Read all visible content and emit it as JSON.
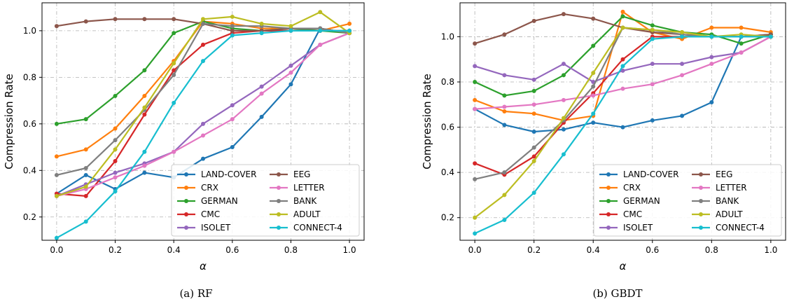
{
  "figure": {
    "captions": [
      "(a) RF",
      "(b) GBDT"
    ]
  },
  "legend_columns": [
    [
      "LAND-COVER",
      "CRX",
      "GERMAN",
      "CMC",
      "ISOLET"
    ],
    [
      "EEG",
      "LETTER",
      "BANK",
      "ADULT",
      "CONNECT-4"
    ]
  ],
  "chart_data": [
    {
      "type": "line",
      "title": "",
      "caption": "(a) RF",
      "xlabel": "α",
      "ylabel": "Compression Rate",
      "xlim": [
        -0.05,
        1.05
      ],
      "ylim": [
        0.1,
        1.12
      ],
      "xticks": [
        0.0,
        0.2,
        0.4,
        0.6,
        0.8,
        1.0
      ],
      "xtick_labels": [
        "0.0",
        "0.2",
        "0.4",
        "0.6",
        "0.8",
        "1.0"
      ],
      "yticks": [
        0.2,
        0.4,
        0.6,
        0.8,
        1.0
      ],
      "ytick_labels": [
        "0.2",
        "0.4",
        "0.6",
        "0.8",
        "1.0"
      ],
      "grid": true,
      "legend_position": "lower-right",
      "x": [
        0.0,
        0.1,
        0.2,
        0.3,
        0.4,
        0.5,
        0.6,
        0.7,
        0.8,
        0.9,
        1.0
      ],
      "series": [
        {
          "name": "LAND-COVER",
          "color": "#1f77b4",
          "values": [
            0.3,
            0.38,
            0.32,
            0.39,
            0.37,
            0.45,
            0.5,
            0.63,
            0.77,
            1.01,
            0.99
          ]
        },
        {
          "name": "CRX",
          "color": "#ff7f0e",
          "values": [
            0.46,
            0.49,
            0.58,
            0.72,
            0.87,
            1.04,
            1.03,
            1.01,
            1.01,
            1.0,
            1.03
          ]
        },
        {
          "name": "GERMAN",
          "color": "#2ca02c",
          "values": [
            0.6,
            0.62,
            0.72,
            0.83,
            0.99,
            1.04,
            1.01,
            1.0,
            1.01,
            1.0,
            0.99
          ]
        },
        {
          "name": "CMC",
          "color": "#d62728",
          "values": [
            0.3,
            0.29,
            0.44,
            0.64,
            0.83,
            0.94,
            0.99,
            1.0,
            1.0,
            1.0,
            1.0
          ]
        },
        {
          "name": "ISOLET",
          "color": "#9467bd",
          "values": [
            0.29,
            0.34,
            0.39,
            0.43,
            0.48,
            0.6,
            0.68,
            0.76,
            0.85,
            0.94,
            0.99
          ]
        },
        {
          "name": "EEG",
          "color": "#8c564b",
          "values": [
            1.02,
            1.04,
            1.05,
            1.05,
            1.05,
            1.03,
            1.0,
            1.0,
            1.01,
            1.01,
            0.99
          ]
        },
        {
          "name": "LETTER",
          "color": "#e377c2",
          "values": [
            0.29,
            0.32,
            0.37,
            0.42,
            0.48,
            0.55,
            0.62,
            0.73,
            0.82,
            0.94,
            0.99
          ]
        },
        {
          "name": "BANK",
          "color": "#7f7f7f",
          "values": [
            0.38,
            0.41,
            0.53,
            0.66,
            0.81,
            1.03,
            1.02,
            1.02,
            1.01,
            1.01,
            0.99
          ]
        },
        {
          "name": "ADULT",
          "color": "#bcbd22",
          "values": [
            0.29,
            0.33,
            0.49,
            0.67,
            0.86,
            1.05,
            1.06,
            1.03,
            1.02,
            1.08,
            0.99
          ]
        },
        {
          "name": "CONNECT-4",
          "color": "#17becf",
          "values": [
            0.11,
            0.18,
            0.31,
            0.48,
            0.69,
            0.87,
            0.98,
            0.99,
            1.0,
            1.0,
            1.0
          ]
        }
      ]
    },
    {
      "type": "line",
      "title": "",
      "caption": "(b) GBDT",
      "xlabel": "α",
      "ylabel": "Compression Rate",
      "xlim": [
        -0.05,
        1.05
      ],
      "ylim": [
        0.1,
        1.15
      ],
      "xticks": [
        0.0,
        0.2,
        0.4,
        0.6,
        0.8,
        1.0
      ],
      "xtick_labels": [
        "0.0",
        "0.2",
        "0.4",
        "0.6",
        "0.8",
        "1.0"
      ],
      "yticks": [
        0.2,
        0.4,
        0.6,
        0.8,
        1.0
      ],
      "ytick_labels": [
        "0.2",
        "0.4",
        "0.6",
        "0.8",
        "1.0"
      ],
      "grid": true,
      "legend_position": "lower-right",
      "x": [
        0.0,
        0.1,
        0.2,
        0.3,
        0.4,
        0.5,
        0.6,
        0.7,
        0.8,
        0.9,
        1.0
      ],
      "series": [
        {
          "name": "LAND-COVER",
          "color": "#1f77b4",
          "values": [
            0.68,
            0.61,
            0.58,
            0.59,
            0.62,
            0.6,
            0.63,
            0.65,
            0.71,
            1.0,
            1.01
          ]
        },
        {
          "name": "CRX",
          "color": "#ff7f0e",
          "values": [
            0.72,
            0.67,
            0.66,
            0.63,
            0.65,
            1.11,
            1.02,
            0.99,
            1.04,
            1.04,
            1.02
          ]
        },
        {
          "name": "GERMAN",
          "color": "#2ca02c",
          "values": [
            0.8,
            0.74,
            0.76,
            0.83,
            0.96,
            1.09,
            1.05,
            1.02,
            1.01,
            0.97,
            1.01
          ]
        },
        {
          "name": "CMC",
          "color": "#d62728",
          "values": [
            0.44,
            0.39,
            0.47,
            0.62,
            0.75,
            0.9,
            1.0,
            1.0,
            1.0,
            1.0,
            1.0
          ]
        },
        {
          "name": "ISOLET",
          "color": "#9467bd",
          "values": [
            0.87,
            0.83,
            0.81,
            0.88,
            0.8,
            0.85,
            0.88,
            0.88,
            0.91,
            0.93,
            1.0
          ]
        },
        {
          "name": "EEG",
          "color": "#8c564b",
          "values": [
            0.97,
            1.01,
            1.07,
            1.1,
            1.08,
            1.04,
            1.02,
            1.01,
            1.0,
            1.0,
            1.01
          ]
        },
        {
          "name": "LETTER",
          "color": "#e377c2",
          "values": [
            0.68,
            0.69,
            0.7,
            0.72,
            0.74,
            0.77,
            0.79,
            0.83,
            0.88,
            0.93,
            1.0
          ]
        },
        {
          "name": "BANK",
          "color": "#7f7f7f",
          "values": [
            0.37,
            0.4,
            0.51,
            0.63,
            0.78,
            1.04,
            1.03,
            1.01,
            1.0,
            1.0,
            1.0
          ]
        },
        {
          "name": "ADULT",
          "color": "#bcbd22",
          "values": [
            0.2,
            0.3,
            0.45,
            0.64,
            0.84,
            1.04,
            1.03,
            1.02,
            1.0,
            1.01,
            1.0
          ]
        },
        {
          "name": "CONNECT-4",
          "color": "#17becf",
          "values": [
            0.13,
            0.19,
            0.31,
            0.48,
            0.66,
            0.87,
            0.99,
            1.0,
            1.0,
            1.0,
            1.0
          ]
        }
      ]
    }
  ]
}
